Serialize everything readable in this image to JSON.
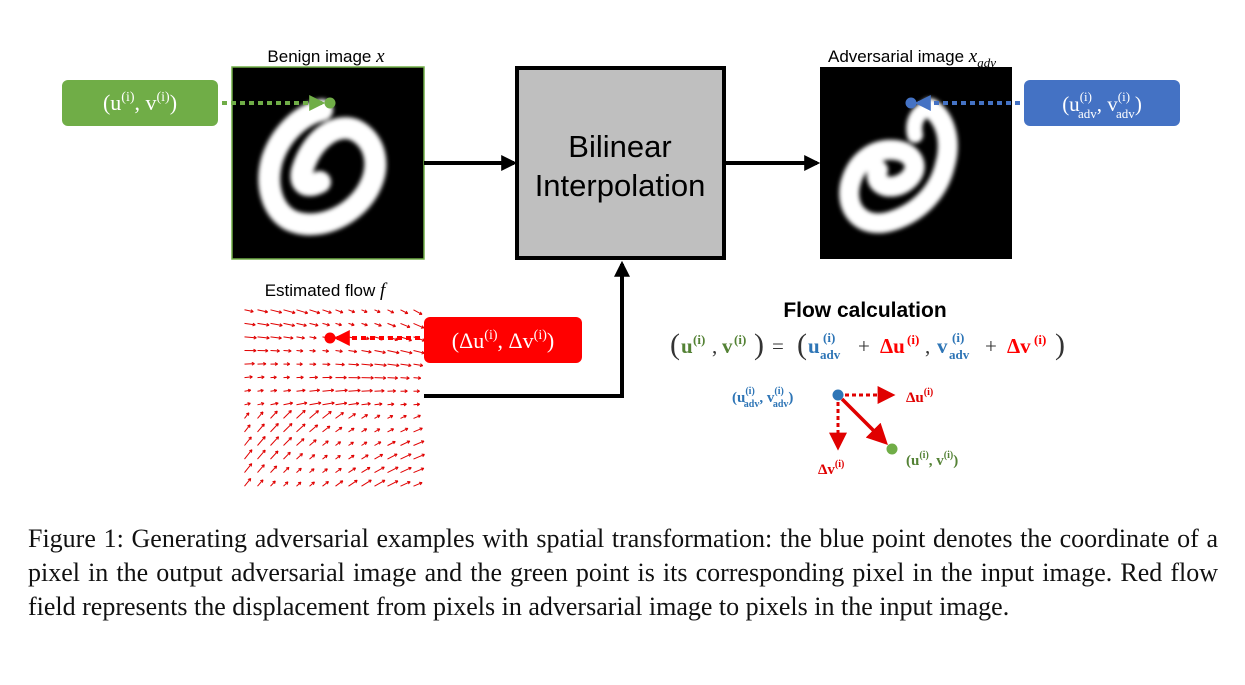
{
  "benign": {
    "label": "Benign image",
    "var": "x"
  },
  "adversarial": {
    "label": "Adversarial image",
    "var": "x",
    "var_sub": "adv"
  },
  "flow": {
    "label": "Estimated flow",
    "var": "f"
  },
  "interp": {
    "line1": "Bilinear",
    "line2": "Interpolation"
  },
  "tags": {
    "green": "(u^(i), v^(i))",
    "blue": "(u_adv^(i), v_adv^(i))",
    "red": "(Δu^(i), Δv^(i))"
  },
  "calc": {
    "title": "Flow calculation",
    "equation": "(u^(i), v^(i)) = (u_adv^(i) + Δu^(i), v_adv^(i) + Δv^(i))",
    "point_blue": "(u_adv^(i), v_adv^(i))",
    "point_green": "(u^(i), v^(i))",
    "du": "Δu^(i)",
    "dv": "Δv^(i)"
  },
  "caption": "Figure 1: Generating adversarial examples with spatial transformation: the blue point denotes the coordinate of a pixel in the output adversarial image and the green point is its corresponding pixel in the input image. Red flow field represents the displacement from pixels in adversarial image to pixels in the input image.",
  "colors": {
    "green": "#70ad47",
    "blue": "#4472c4",
    "red": "#ff0000",
    "box": "#bfbfbf",
    "eq_green": "#548235",
    "eq_blue": "#2e75b6"
  }
}
